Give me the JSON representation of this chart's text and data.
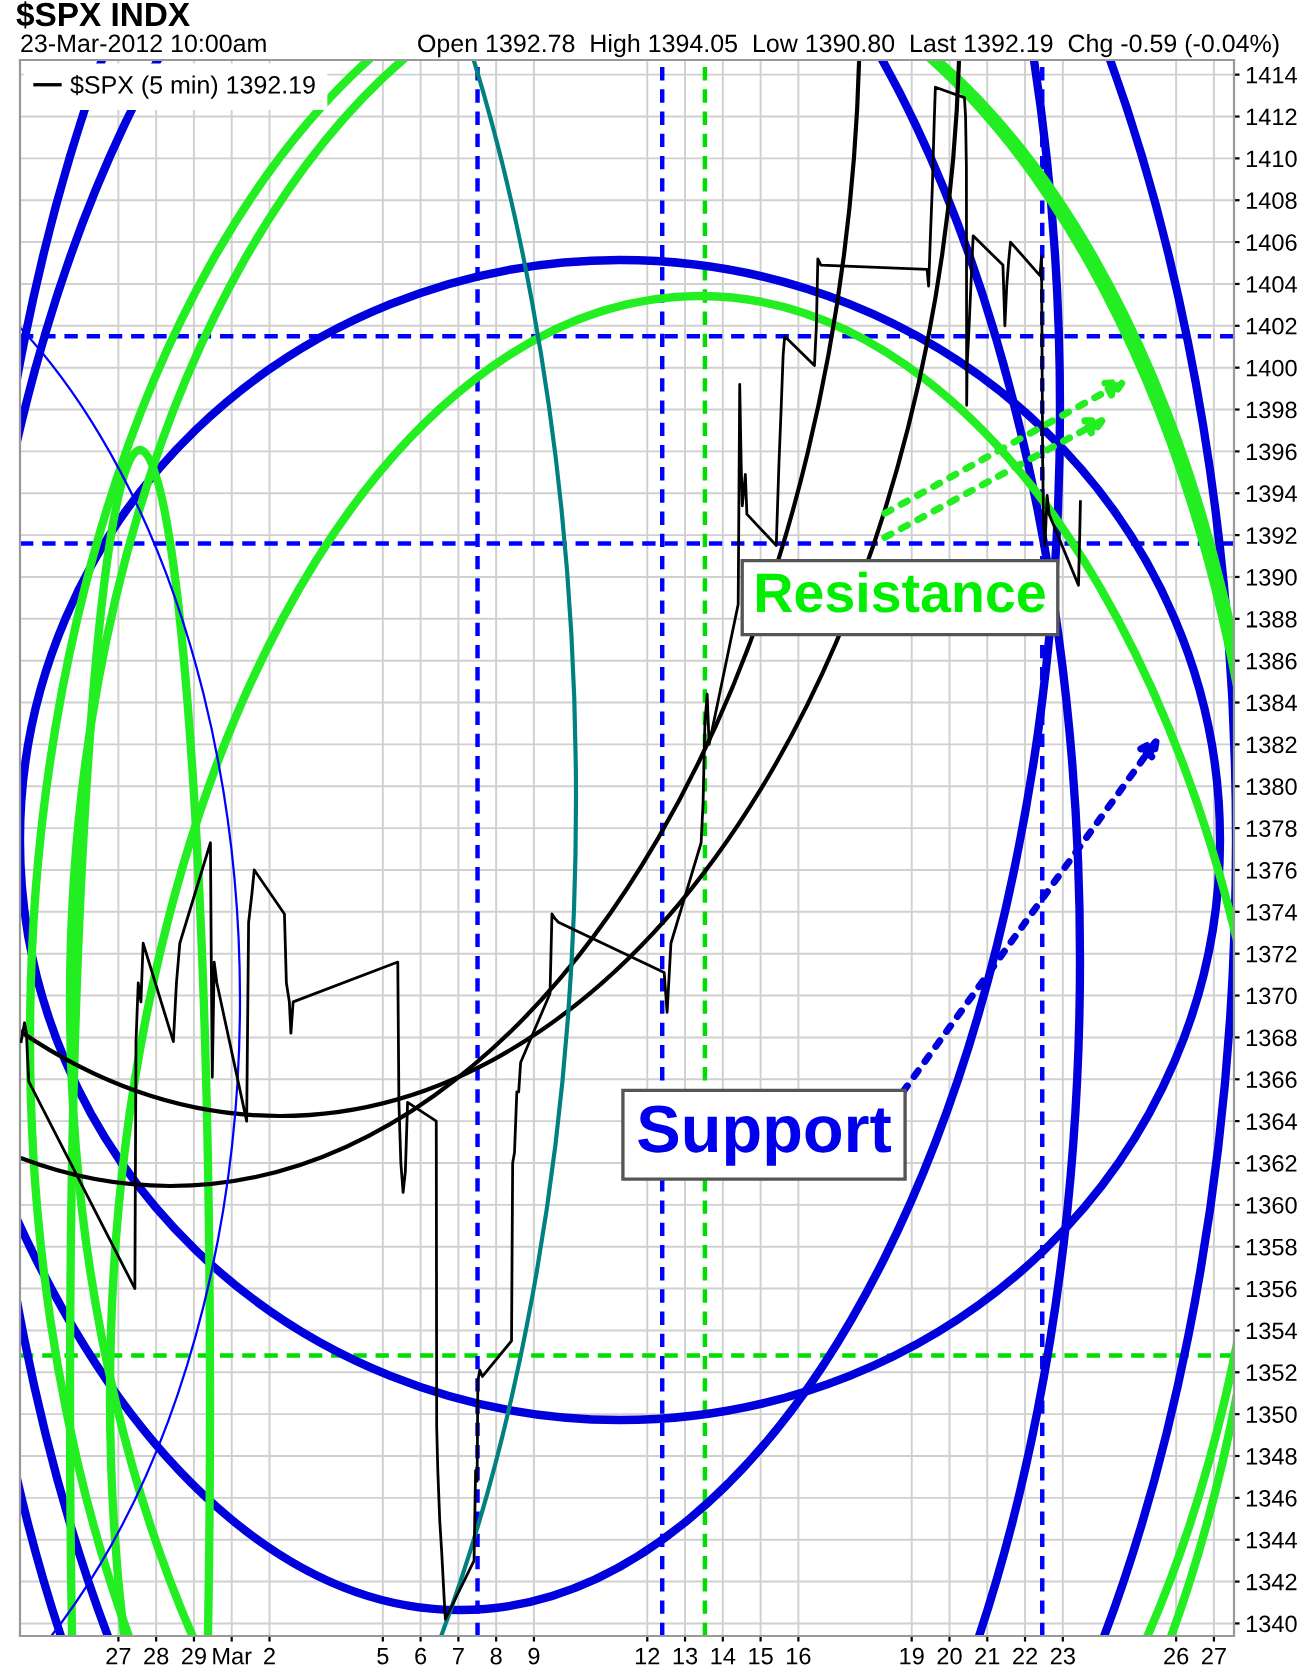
{
  "chart_data": {
    "type": "line",
    "title": "$SPX INDX",
    "annotations": [
      "23-Mar-2012 10:00am",
      "Open 1392.78  High 1394.05  Low 1390.80  Last 1392.19  Chg -0.59 (-0.04%)",
      "Resistance",
      "Support"
    ],
    "x": [
      "2012-02-24T10:13",
      "2012-02-24T12:22",
      "2012-02-24T13:36",
      "2012-02-24T15:02",
      "2012-02-27T10:29",
      "2012-02-27T11:11",
      "2012-02-27T12:37",
      "2012-02-27T14:19",
      "2012-02-27T15:44",
      "2012-02-28T10:56",
      "2012-02-28T12:53",
      "2012-02-28T15:02",
      "2012-02-29T10:29",
      "2012-02-29T10:56",
      "2012-02-29T11:39",
      "2012-02-29T12:53",
      "2012-02-29T14:34",
      "2012-03-01T09:30",
      "2012-03-01T10:44",
      "2012-03-01T12:53",
      "2012-03-01T14:19",
      "2012-03-02T09:30",
      "2012-03-02T10:44",
      "2012-03-02T12:37",
      "2012-03-02T13:36",
      "2012-03-02T15:02",
      "2012-03-05T09:30",
      "2012-03-05T10:13",
      "2012-03-05T11:27",
      "2012-03-05T12:53",
      "2012-03-05T14:19",
      "2012-03-05T15:44",
      "2012-03-06T09:57",
      "2012-03-06T10:13",
      "2012-03-06T10:56",
      "2012-03-06T12:10",
      "2012-03-06T13:20",
      "2012-03-06T15:02",
      "2012-03-06T15:44",
      "2012-03-07T09:57",
      "2012-03-07T10:56",
      "2012-03-07T11:54",
      "2012-03-07T12:22",
      "2012-03-07T13:36",
      "2012-03-07T15:17",
      "2012-03-08T09:46",
      "2012-03-08T10:29",
      "2012-03-08T11:39",
      "2012-03-08T13:08",
      "2012-03-08T14:19",
      "2012-03-08T15:33",
      "2012-03-09T10:13",
      "2012-03-09T11:27",
      "2012-03-09T13:08",
      "2012-03-09T15:33",
      "2012-03-12T10:44",
      "2012-03-12T12:37",
      "2012-03-12T15:02",
      "2012-03-13T10:13",
      "2012-03-13T11:27",
      "2012-03-13T12:37",
      "2012-03-13T14:03",
      "2012-03-13T15:17",
      "2012-03-14T09:46",
      "2012-03-14T10:44",
      "2012-03-14T11:39",
      "2012-03-14T12:22",
      "2012-03-14T14:19",
      "2012-03-14T15:17",
      "2012-03-15T09:57",
      "2012-03-15T11:39",
      "2012-03-15T13:08",
      "2012-03-15T14:19",
      "2012-03-15T15:17",
      "2012-03-16T10:13",
      "2012-03-16T11:27",
      "2012-03-16T12:22",
      "2012-03-16T14:19",
      "2012-03-19T09:46",
      "2012-03-19T10:44",
      "2012-03-19T11:54",
      "2012-03-19T13:08",
      "2012-03-19T14:19",
      "2012-03-19T15:02",
      "2012-03-20T09:30",
      "2012-03-20T10:13",
      "2012-03-20T10:44",
      "2012-03-20T10:56",
      "2012-03-20T11:11",
      "2012-03-20T12:10",
      "2012-03-20T13:36",
      "2012-03-20T15:02",
      "2012-03-21T09:57",
      "2012-03-21T11:11",
      "2012-03-21T12:22",
      "2012-03-21T13:36",
      "2012-03-21T14:46",
      "2012-03-22T09:30",
      "2012-03-22T10:29",
      "2012-03-22T11:11",
      "2012-03-22T11:39",
      "2012-03-22T12:37",
      "2012-03-22T14:03",
      "2012-03-22T15:17",
      "2012-03-23T09:57",
      "2012-03-23T10:44",
      "2012-03-23T11:11"
    ],
    "series": [
      {
        "name": "$SPX (5 min) 1392.19",
        "color": "#000000",
        "values": [
          1367.8,
          1368.7,
          1368.2,
          1365.9,
          1356.0,
          1367.8,
          1370.6,
          1369.7,
          1372.5,
          1367.8,
          1370.6,
          1372.5,
          1377.3,
          1372.5,
          1366.1,
          1371.6,
          1370.6,
          1364.0,
          1373.5,
          1374.9,
          1376.0,
          1373.9,
          1370.6,
          1369.7,
          1368.2,
          1369.7,
          1371.6,
          1364.9,
          1362.0,
          1360.6,
          1361.6,
          1364.9,
          1364.0,
          1349.4,
          1347.3,
          1344.9,
          1343.5,
          1341.1,
          1340.2,
          1343.0,
          1347.3,
          1346.8,
          1351.6,
          1352.1,
          1351.8,
          1353.5,
          1362.0,
          1362.5,
          1365.4,
          1365.4,
          1366.8,
          1370.1,
          1373.9,
          1373.7,
          1373.5,
          1371.1,
          1369.2,
          1372.5,
          1377.3,
          1379.2,
          1383.0,
          1384.4,
          1382.0,
          1388.7,
          1399.2,
          1395.4,
          1393.4,
          1394.9,
          1393.0,
          1391.5,
          1395.4,
          1398.2,
          1400.6,
          1401.5,
          1400.1,
          1402.0,
          1405.2,
          1404.9,
          1404.7,
          1403.9,
          1406.3,
          1408.7,
          1411.8,
          1413.4,
          1412.9,
          1412.0,
          1409.6,
          1398.2,
          1400.1,
          1401.5,
          1403.9,
          1406.3,
          1404.9,
          1402.0,
          1403.9,
          1405.1,
          1406.0,
          1404.4,
          1405.3,
          1395.6,
          1393.0,
          1391.5,
          1393.9,
          1393.0,
          1389.6,
          1392.0,
          1393.6
        ]
      }
    ],
    "xlim": [
      "2012-02-24T09:30",
      "2012-03-27T12:45"
    ],
    "xticks": [
      {
        "value": "2012-02-27",
        "label": "27"
      },
      {
        "value": "2012-02-28",
        "label": "28"
      },
      {
        "value": "2012-02-29",
        "label": "29"
      },
      {
        "value": "2012-03-01",
        "label": "Mar"
      },
      {
        "value": "2012-03-02",
        "label": "2"
      },
      {
        "value": "2012-03-05",
        "label": "5"
      },
      {
        "value": "2012-03-06",
        "label": "6"
      },
      {
        "value": "2012-03-07",
        "label": "7"
      },
      {
        "value": "2012-03-08",
        "label": "8"
      },
      {
        "value": "2012-03-09",
        "label": "9"
      },
      {
        "value": "2012-03-12",
        "label": "12"
      },
      {
        "value": "2012-03-13",
        "label": "13"
      },
      {
        "value": "2012-03-14",
        "label": "14"
      },
      {
        "value": "2012-03-15",
        "label": "15"
      },
      {
        "value": "2012-03-16",
        "label": "16"
      },
      {
        "value": "2012-03-19",
        "label": "19"
      },
      {
        "value": "2012-03-20",
        "label": "20"
      },
      {
        "value": "2012-03-21",
        "label": "21"
      },
      {
        "value": "2012-03-22",
        "label": "22"
      },
      {
        "value": "2012-03-23",
        "label": "23"
      },
      {
        "value": "2012-03-26",
        "label": "26"
      },
      {
        "value": "2012-03-27",
        "label": "27"
      }
    ],
    "ylim": [
      1339.4,
      1414.7
    ],
    "yticks": [
      1340,
      1342,
      1344,
      1346,
      1348,
      1350,
      1352,
      1354,
      1356,
      1358,
      1360,
      1362,
      1364,
      1366,
      1368,
      1370,
      1372,
      1374,
      1376,
      1378,
      1380,
      1382,
      1384,
      1386,
      1388,
      1390,
      1392,
      1394,
      1396,
      1398,
      1400,
      1402,
      1404,
      1406,
      1408,
      1410,
      1412,
      1414
    ],
    "ref_lines": [
      {
        "axis": "y",
        "value": 1401.5,
        "color": "#0000ff",
        "line_style": "dashed"
      },
      {
        "axis": "y",
        "value": 1391.6,
        "color": "#0000ff",
        "line_style": "dashed"
      },
      {
        "axis": "y",
        "value": 1352.8,
        "color": "#00dd00",
        "line_style": "dashed"
      },
      {
        "axis": "x",
        "value": "2012-03-07T12:10",
        "color": "#0000ff",
        "line_style": "dashed"
      },
      {
        "axis": "x",
        "value": "2012-03-12T09:30",
        "color": "#0000ff",
        "line_style": "dashed"
      },
      {
        "axis": "x",
        "value": "2012-03-22T10:56",
        "color": "#0000ff",
        "line_style": "dashed"
      },
      {
        "axis": "x",
        "value": "2012-03-13T12:37",
        "color": "#00dd00",
        "line_style": "dashed"
      }
    ],
    "grid": true,
    "legend": "top left"
  }
}
